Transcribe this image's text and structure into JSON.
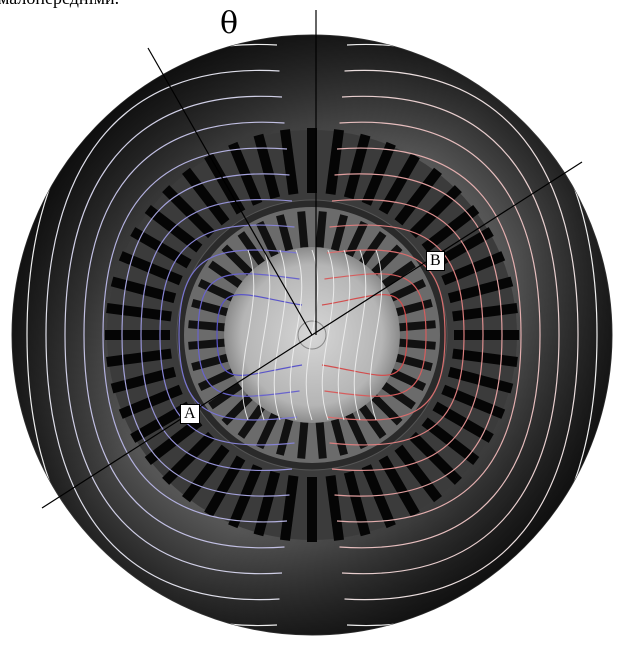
{
  "caption_fragment": "малопередніми.",
  "angle_symbol": "θ",
  "labels": {
    "a": "A",
    "b": "B"
  },
  "colors": {
    "background": "#ffffff",
    "field_dark": "#0d0d0d",
    "field_light": "#d9d9d9",
    "line_blue": "#5a55c8",
    "line_red": "#d24e4e",
    "line_white": "#eeeeee",
    "axis": "#000000"
  },
  "diagram": {
    "type": "electric machine cross-section with magnetic flux lines",
    "stator_slots": 48,
    "rotor_slots": 36,
    "flux_lines_per_side": 11
  }
}
